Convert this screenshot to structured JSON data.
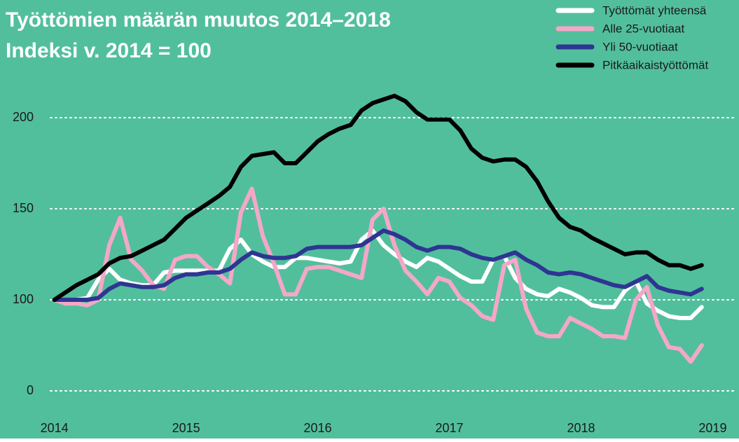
{
  "chart_data": {
    "type": "line",
    "title": "Työttömien määrän muutos 2014–2018",
    "subtitle": "Indeksi v. 2014 = 100",
    "x": [
      2014,
      2014.083,
      2014.167,
      2014.25,
      2014.333,
      2014.417,
      2014.5,
      2014.583,
      2014.667,
      2014.75,
      2014.833,
      2014.917,
      2015,
      2015.083,
      2015.167,
      2015.25,
      2015.333,
      2015.417,
      2015.5,
      2015.583,
      2015.667,
      2015.75,
      2015.833,
      2015.917,
      2016,
      2016.083,
      2016.167,
      2016.25,
      2016.333,
      2016.417,
      2016.5,
      2016.583,
      2016.667,
      2016.75,
      2016.833,
      2016.917,
      2017,
      2017.083,
      2017.167,
      2017.25,
      2017.333,
      2017.417,
      2017.5,
      2017.583,
      2017.667,
      2017.75,
      2017.833,
      2017.917,
      2018,
      2018.083,
      2018.167,
      2018.25,
      2018.333,
      2018.417,
      2018.5,
      2018.583,
      2018.667,
      2018.75,
      2018.833,
      2018.917
    ],
    "series": [
      {
        "name": "Työttömät yhteensä",
        "color": "#ffffff",
        "values": [
          100,
          100,
          100,
          101,
          111,
          117,
          111,
          109,
          108,
          108,
          115,
          116,
          116,
          116,
          116,
          116,
          128,
          133,
          125,
          121,
          118,
          118,
          123,
          123,
          122,
          121,
          120,
          121,
          133,
          138,
          130,
          125,
          121,
          118,
          123,
          121,
          117,
          113,
          110,
          110,
          122,
          124,
          112,
          106,
          103,
          102,
          106,
          104,
          101,
          97,
          96,
          96,
          105,
          110,
          98,
          94,
          91,
          90,
          90,
          96
        ]
      },
      {
        "name": "Alle 25-vuotiaat",
        "color": "#f4a7c8",
        "values": [
          100,
          98,
          98,
          97,
          100,
          130,
          145,
          122,
          116,
          108,
          106,
          122,
          124,
          124,
          118,
          114,
          109,
          148,
          161,
          135,
          120,
          103,
          103,
          117,
          118,
          118,
          116,
          114,
          112,
          144,
          150,
          130,
          116,
          110,
          103,
          112,
          110,
          101,
          97,
          91,
          89,
          119,
          122,
          95,
          82,
          80,
          80,
          90,
          87,
          84,
          80,
          80,
          79,
          100,
          107,
          86,
          74,
          73,
          66,
          75
        ]
      },
      {
        "name": "Yli 50-vuotiaat",
        "color": "#2e3592",
        "values": [
          100,
          100,
          100,
          100,
          101,
          106,
          109,
          108,
          107,
          107,
          108,
          112,
          114,
          114,
          115,
          115,
          117,
          122,
          126,
          124,
          123,
          123,
          124,
          128,
          129,
          129,
          129,
          129,
          130,
          134,
          138,
          136,
          133,
          129,
          127,
          129,
          129,
          128,
          125,
          123,
          122,
          124,
          126,
          122,
          119,
          115,
          114,
          115,
          114,
          112,
          110,
          108,
          107,
          110,
          113,
          107,
          105,
          104,
          103,
          106
        ]
      },
      {
        "name": "Pitkäaikaistyöttömät",
        "color": "#000000",
        "values": [
          100,
          104,
          108,
          111,
          114,
          120,
          123,
          124,
          127,
          130,
          133,
          139,
          145,
          149,
          153,
          157,
          162,
          173,
          179,
          180,
          181,
          175,
          175,
          181,
          187,
          191,
          194,
          196,
          204,
          208,
          210,
          212,
          209,
          203,
          199,
          199,
          199,
          193,
          183,
          178,
          176,
          177,
          177,
          173,
          165,
          154,
          145,
          140,
          138,
          134,
          131,
          128,
          125,
          126,
          126,
          122,
          119,
          119,
          117,
          119
        ]
      }
    ],
    "xlim": [
      2013.97,
      2019.12
    ],
    "xticks": [
      2014,
      2015,
      2016,
      2017,
      2018,
      2019
    ],
    "ylim": [
      0,
      215
    ],
    "y_axis_break": [
      0,
      50
    ],
    "yticks": [
      0,
      100,
      150,
      200
    ],
    "grid": true,
    "legend": "top-right",
    "background": "#52bf9c"
  }
}
